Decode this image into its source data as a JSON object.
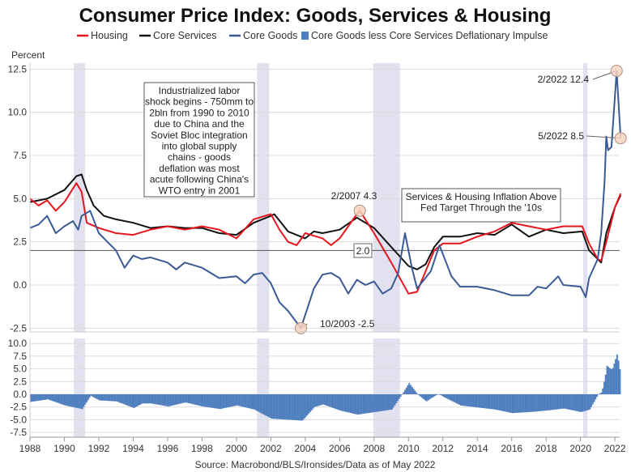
{
  "chart_data": [
    {
      "type": "line",
      "title": "Consumer Price Index: Goods, Services & Housing",
      "ylabel": "Percent",
      "ylim": [
        -3,
        12.8
      ],
      "yticks": [
        "12.5",
        "10.0",
        "7.5",
        "5.0",
        "2.5",
        "0.0",
        "-2.5"
      ],
      "xticks": [
        "1988",
        "1990",
        "1992",
        "1994",
        "1996",
        "1998",
        "2000",
        "2002",
        "2004",
        "2006",
        "2008",
        "2010",
        "2012",
        "2014",
        "2016",
        "2018",
        "2020",
        "2022"
      ],
      "xlim": [
        1988,
        2022.6
      ],
      "grid": true,
      "legend_position": "top",
      "legend": [
        "Housing",
        "Core Services",
        "Core Goods",
        "Core Goods less Core Services Deflationary Impulse"
      ],
      "recessions": [
        [
          1990.55,
          1991.2
        ],
        [
          2001.2,
          2001.9
        ],
        [
          2007.95,
          2009.5
        ],
        [
          2020.15,
          2020.4
        ]
      ],
      "reference_line": {
        "value": 2.0,
        "label": "2.0"
      },
      "series": [
        {
          "name": "Housing",
          "color": "#e8141c",
          "x": [
            1988,
            1988.5,
            1989,
            1989.5,
            1990,
            1990.7,
            1991,
            1991.3,
            1992,
            1993,
            1994,
            1995,
            1996,
            1997,
            1998,
            1999,
            2000,
            2001,
            2002,
            2002.5,
            2003,
            2003.5,
            2004,
            2005,
            2005.5,
            2006,
            2007,
            2007.17,
            2008,
            2009,
            2010,
            2010.5,
            2011,
            2011.5,
            2012,
            2013,
            2014,
            2015,
            2016,
            2017,
            2018,
            2019,
            2020.1,
            2020.5,
            2021,
            2021.2,
            2021.5,
            2022,
            2022.33
          ],
          "y": [
            5.0,
            4.6,
            4.9,
            4.3,
            4.8,
            5.9,
            5.4,
            3.6,
            3.3,
            3.0,
            2.9,
            3.2,
            3.4,
            3.2,
            3.4,
            3.2,
            2.7,
            3.8,
            4.1,
            3.2,
            2.5,
            2.3,
            3.0,
            2.7,
            2.3,
            2.7,
            4.1,
            4.3,
            3.0,
            1.3,
            -0.5,
            -0.4,
            0.8,
            2.0,
            2.4,
            2.4,
            2.8,
            3.1,
            3.6,
            3.4,
            3.2,
            3.4,
            3.4,
            2.4,
            1.5,
            1.4,
            2.5,
            4.5,
            5.3
          ]
        },
        {
          "name": "Core Services",
          "color": "#111111",
          "x": [
            1988,
            1989,
            1990,
            1990.7,
            1991,
            1991.3,
            1991.7,
            1992.3,
            1993,
            1994,
            1995,
            1996,
            1997,
            1998,
            1999,
            2000,
            2001,
            2002,
            2002.2,
            2003,
            2004,
            2004.5,
            2005,
            2006,
            2007,
            2008,
            2009,
            2010,
            2010.5,
            2011,
            2011.5,
            2012,
            2013,
            2014,
            2015,
            2016,
            2017,
            2018,
            2019,
            2020.1,
            2020.5,
            2021,
            2021.2,
            2021.5,
            2022,
            2022.33
          ],
          "y": [
            4.8,
            5.0,
            5.5,
            6.3,
            6.4,
            5.5,
            4.6,
            4.0,
            3.8,
            3.6,
            3.3,
            3.4,
            3.3,
            3.3,
            3.0,
            2.9,
            3.6,
            4.0,
            4.1,
            3.1,
            2.7,
            3.1,
            3.0,
            3.2,
            3.9,
            3.3,
            2.2,
            1.1,
            0.9,
            1.2,
            2.2,
            2.8,
            2.8,
            3.0,
            2.9,
            3.5,
            2.8,
            3.2,
            3.0,
            3.1,
            2.0,
            1.5,
            1.3,
            3.0,
            4.5,
            5.2
          ]
        },
        {
          "name": "Core Goods",
          "color": "#3a5a95",
          "x": [
            1988,
            1988.5,
            1989,
            1989.5,
            1990,
            1990.5,
            1990.8,
            1991,
            1991.5,
            1992,
            1992.5,
            1993,
            1993.5,
            1994,
            1994.5,
            1995,
            1996,
            1996.5,
            1997,
            1998,
            1999,
            2000,
            2000.5,
            2001,
            2001.5,
            2002,
            2002.5,
            2003,
            2003.75,
            2004.5,
            2005,
            2005.5,
            2006,
            2006.5,
            2007,
            2007.5,
            2008,
            2008.5,
            2009,
            2009.4,
            2009.8,
            2010.2,
            2010.5,
            2011.3,
            2011.8,
            2012.5,
            2013,
            2014,
            2015,
            2016,
            2017,
            2017.5,
            2018,
            2018.7,
            2019,
            2020,
            2020.3,
            2020.5,
            2021,
            2021.2,
            2021.4,
            2021.5,
            2021.6,
            2021.8,
            2022.1,
            2022.33
          ],
          "y": [
            3.3,
            3.5,
            4.0,
            3.0,
            3.4,
            3.7,
            3.2,
            4.0,
            4.3,
            3.0,
            2.5,
            2.0,
            1.0,
            1.7,
            1.5,
            1.6,
            1.3,
            0.9,
            1.3,
            1.0,
            0.4,
            0.5,
            0.1,
            0.6,
            0.7,
            0.1,
            -1.0,
            -1.5,
            -2.5,
            -0.2,
            0.6,
            0.7,
            0.4,
            -0.5,
            0.3,
            0.0,
            0.2,
            -0.5,
            -0.2,
            0.7,
            3.0,
            1.0,
            -0.2,
            0.8,
            2.3,
            0.5,
            -0.1,
            -0.1,
            -0.3,
            -0.6,
            -0.6,
            -0.1,
            -0.2,
            0.5,
            0.0,
            -0.1,
            -0.7,
            0.4,
            1.5,
            3.0,
            6.0,
            8.6,
            7.8,
            8.0,
            12.4,
            8.5
          ]
        }
      ],
      "annotations": [
        {
          "label": "2/2007 4.3",
          "x": 2007.17,
          "y": 4.3
        },
        {
          "label": "10/2003 -2.5",
          "x": 2003.75,
          "y": -2.5
        },
        {
          "label": "2/2022 12.4",
          "x": 2022.1,
          "y": 12.4
        },
        {
          "label": "5/2022 8.5",
          "x": 2022.33,
          "y": 8.5
        }
      ],
      "text_boxes": [
        "Industrialized labor shock begins - 750mm to 2bln from 1990 to 2010 due to China and the Soviet Bloc integration into global supply chains - goods deflation was most acute following China's WTO entry in 2001",
        "Services & Housing Inflation Above Fed Target Through the '10s"
      ],
      "source": "Source: Macrobond/BLS/Ironsides/Data as of May 2022"
    },
    {
      "type": "bar",
      "name": "Core Goods less Core Services Deflationary Impulse",
      "color": "#4f7fbf",
      "ylim": [
        -8.5,
        11
      ],
      "yticks": [
        "10.0",
        "7.5",
        "5.0",
        "2.5",
        "0.0",
        "-2.5",
        "-5.0",
        "-7.5"
      ],
      "x": [
        1988,
        1989,
        1990,
        1991,
        1991.5,
        1992,
        1993,
        1994,
        1994.5,
        1995,
        1996,
        1997,
        1998,
        1999,
        2000,
        2001,
        2002,
        2003,
        2003.8,
        2004.5,
        2005,
        2006,
        2007,
        2008,
        2009,
        2009.5,
        2010,
        2010.5,
        2011,
        2011.7,
        2012,
        2013,
        2014,
        2015,
        2016,
        2017,
        2018,
        2019,
        2020,
        2020.5,
        2021,
        2021.2,
        2021.4,
        2021.5,
        2021.8,
        2022.1,
        2022.33
      ],
      "y": [
        -1.5,
        -1.0,
        -2.2,
        -2.9,
        -0.3,
        -1.2,
        -1.4,
        -2.7,
        -1.8,
        -1.8,
        -2.4,
        -1.6,
        -2.4,
        -2.9,
        -2.2,
        -3.0,
        -4.8,
        -5.0,
        -5.2,
        -2.5,
        -2.0,
        -3.2,
        -4.0,
        -3.5,
        -3.0,
        -0.5,
        2.2,
        0.0,
        -1.4,
        0.1,
        -0.5,
        -2.2,
        -2.6,
        -3.0,
        -3.7,
        -3.5,
        -3.2,
        -2.8,
        -3.5,
        -3.0,
        0.0,
        0.4,
        3.5,
        5.6,
        4.8,
        8.0,
        3.3
      ]
    }
  ]
}
